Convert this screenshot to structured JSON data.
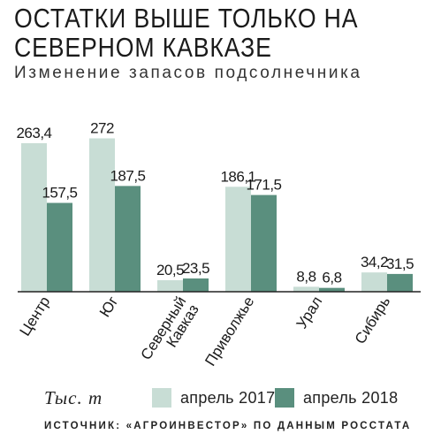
{
  "title": "ОСТАТКИ ВЫШЕ ТОЛЬКО НА СЕВЕРНОМ КАВКАЗЕ",
  "subtitle": "Изменение запасов подсолнечника",
  "unit": "Тыс. т",
  "source": "ИСТОЧНИК: «АГРОИНВЕСТОР» ПО ДАННЫМ РОССТАТА",
  "colors": {
    "series2017": "#c8ddd5",
    "series2018": "#5a8f7e",
    "text": "#1a1a1a",
    "axis": "#222222"
  },
  "chart_data": {
    "type": "bar",
    "categories": [
      "Центр",
      "Юг",
      "Северный Кавказ",
      "Приволжье",
      "Урал",
      "Сибирь"
    ],
    "series": [
      {
        "name": "апрель 2017",
        "values": [
          263.4,
          272,
          20.5,
          186.1,
          8.8,
          34.2
        ],
        "labels": [
          "263,4",
          "272",
          "20,5",
          "186,1",
          "8,8",
          "34,2"
        ]
      },
      {
        "name": "апрель 2018",
        "values": [
          157.5,
          187.5,
          23.5,
          171.5,
          6.8,
          31.5
        ],
        "labels": [
          "157,5",
          "187,5",
          "23,5",
          "171,5",
          "6,8",
          "31,5"
        ]
      }
    ],
    "ylim": [
      0,
      290
    ],
    "xlabel": "",
    "ylabel": "",
    "grid": false,
    "legend_position": "bottom"
  }
}
